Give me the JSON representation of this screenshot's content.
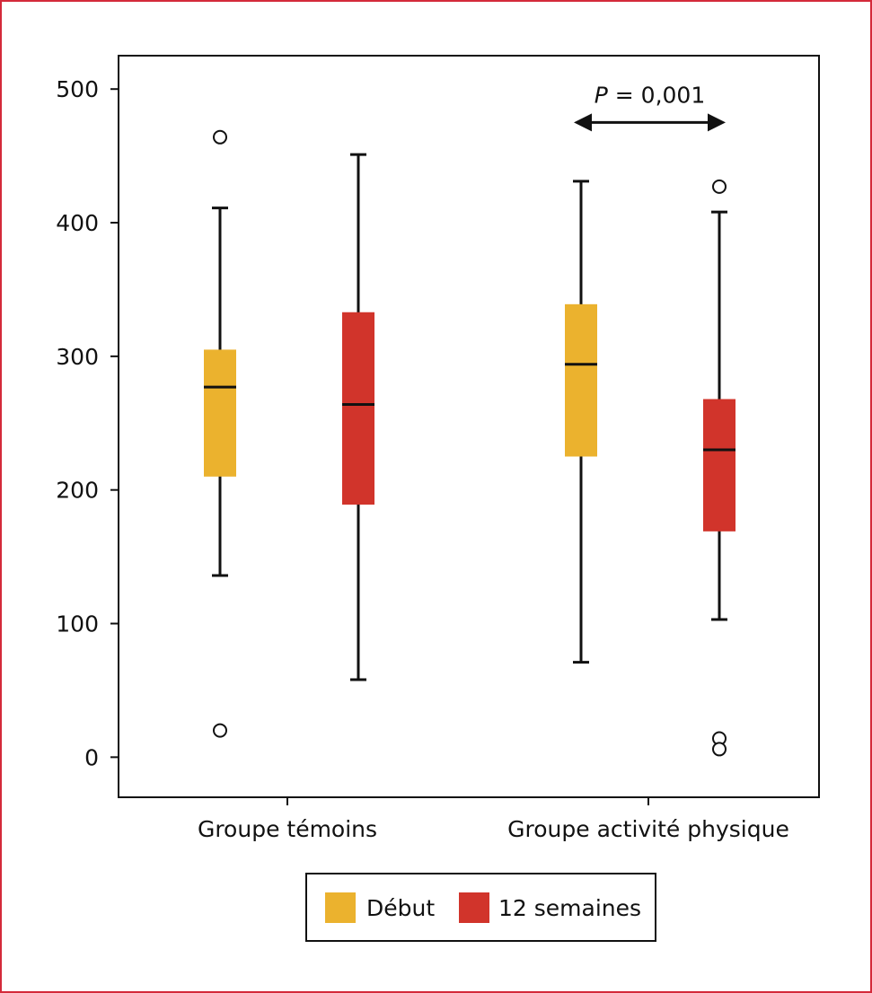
{
  "chart_data": {
    "type": "boxplot",
    "title": "",
    "xlabel": "",
    "ylabel": "",
    "ylim": [
      -30,
      525
    ],
    "yticks": [
      0,
      100,
      200,
      300,
      400,
      500
    ],
    "grid": false,
    "legend_position": "bottom-center",
    "categories": [
      "Groupe témoins",
      "Groupe activité physique"
    ],
    "series": [
      {
        "name": "Début",
        "color": "#ebb22e",
        "boxes": [
          {
            "category": "Groupe témoins",
            "whisker_low": 136,
            "q1": 210,
            "median": 277,
            "q3": 305,
            "whisker_high": 411,
            "outliers": [
              464,
              20
            ]
          },
          {
            "category": "Groupe activité physique",
            "whisker_low": 71,
            "q1": 225,
            "median": 294,
            "q3": 339,
            "whisker_high": 431,
            "outliers": []
          }
        ]
      },
      {
        "name": "12 semaines",
        "color": "#d1342b",
        "boxes": [
          {
            "category": "Groupe témoins",
            "whisker_low": 58,
            "q1": 189,
            "median": 264,
            "q3": 333,
            "whisker_high": 451,
            "outliers": []
          },
          {
            "category": "Groupe activité physique",
            "whisker_low": 103,
            "q1": 169,
            "median": 230,
            "q3": 268,
            "whisker_high": 408,
            "outliers": [
              427,
              14,
              6
            ]
          }
        ]
      }
    ],
    "annotations": [
      {
        "italic": "P",
        "text": " = 0,001",
        "category": "Groupe activité physique",
        "y": 475
      }
    ]
  },
  "colors": {
    "frame": "#d42a3a",
    "axis": "#111111"
  }
}
